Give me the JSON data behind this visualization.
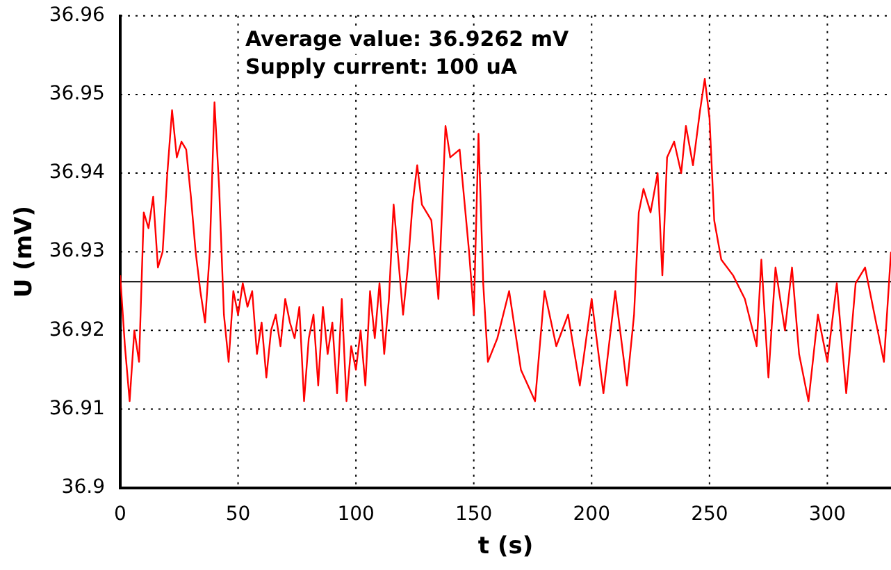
{
  "chart_data": {
    "type": "line",
    "xlabel": "t (s)",
    "ylabel": "U (mV)",
    "annotations": [
      "Average value: 36.9262 mV",
      "Supply current: 100 uA"
    ],
    "xlim": [
      0,
      327
    ],
    "xticks": [
      0,
      50,
      100,
      150,
      200,
      250,
      300
    ],
    "ylim": [
      36.9,
      36.96
    ],
    "yticks": [
      36.9,
      36.91,
      36.92,
      36.93,
      36.94,
      36.95,
      36.96
    ],
    "grid": true,
    "legend": false,
    "marker": "none",
    "line_style": "solid",
    "ref_lines": [
      {
        "axis": "y",
        "value": 36.9262,
        "color": "#000000"
      }
    ],
    "series": [
      {
        "color": "#ff0000",
        "x": [
          0,
          2,
          4,
          6,
          8,
          10,
          12,
          14,
          16,
          18,
          20,
          22,
          24,
          26,
          28,
          30,
          32,
          34,
          36,
          38,
          40,
          42,
          44,
          46,
          48,
          50,
          52,
          54,
          56,
          58,
          60,
          62,
          64,
          66,
          68,
          70,
          72,
          74,
          76,
          78,
          80,
          82,
          84,
          86,
          88,
          90,
          92,
          94,
          96,
          98,
          100,
          102,
          104,
          106,
          108,
          110,
          112,
          114,
          116,
          118,
          120,
          122,
          124,
          126,
          128,
          132,
          135,
          138,
          140,
          144,
          148,
          150,
          152,
          154,
          156,
          160,
          165,
          170,
          176,
          180,
          185,
          190,
          195,
          200,
          205,
          210,
          215,
          218,
          220,
          222,
          225,
          228,
          230,
          232,
          235,
          238,
          240,
          243,
          246,
          248,
          250,
          252,
          255,
          260,
          265,
          270,
          272,
          275,
          278,
          282,
          285,
          288,
          292,
          296,
          300,
          304,
          308,
          312,
          316,
          320,
          324,
          327
        ],
        "values": [
          36.927,
          36.918,
          36.911,
          36.92,
          36.916,
          36.935,
          36.933,
          36.937,
          36.928,
          36.93,
          36.94,
          36.948,
          36.942,
          36.944,
          36.943,
          36.937,
          36.93,
          36.925,
          36.921,
          36.93,
          36.949,
          36.938,
          36.922,
          36.916,
          36.925,
          36.922,
          36.926,
          36.923,
          36.925,
          36.917,
          36.921,
          36.914,
          36.92,
          36.922,
          36.918,
          36.924,
          36.921,
          36.919,
          36.923,
          36.911,
          36.919,
          36.922,
          36.913,
          36.923,
          36.917,
          36.921,
          36.912,
          36.924,
          36.911,
          36.918,
          36.915,
          36.92,
          36.913,
          36.925,
          36.919,
          36.926,
          36.917,
          36.924,
          36.936,
          36.929,
          36.922,
          36.928,
          36.936,
          36.941,
          36.936,
          36.934,
          36.924,
          36.946,
          36.942,
          36.943,
          36.93,
          36.922,
          36.945,
          36.926,
          36.916,
          36.919,
          36.925,
          36.915,
          36.911,
          36.925,
          36.918,
          36.922,
          36.913,
          36.924,
          36.912,
          36.925,
          36.913,
          36.922,
          36.935,
          36.938,
          36.935,
          36.94,
          36.927,
          36.942,
          36.944,
          36.94,
          36.946,
          36.941,
          36.948,
          36.952,
          36.947,
          36.934,
          36.929,
          36.927,
          36.924,
          36.918,
          36.929,
          36.914,
          36.928,
          36.92,
          36.928,
          36.917,
          36.911,
          36.922,
          36.916,
          36.926,
          36.912,
          36.926,
          36.928,
          36.922,
          36.916,
          36.93
        ]
      }
    ]
  }
}
